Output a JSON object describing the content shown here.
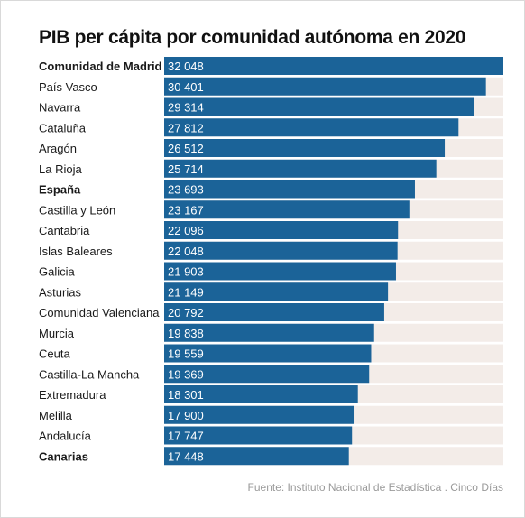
{
  "title": "PIB per cápita por comunidad autónoma en 2020",
  "source": "Fuente: Instituto Nacional de Estadística . Cinco Días",
  "colors": {
    "bar": "#1b6398",
    "track": "#f3ece8",
    "text": "#1a1a1a",
    "source": "#9a9a9a"
  },
  "chart_data": {
    "type": "bar",
    "orientation": "horizontal",
    "title": "PIB per cápita por comunidad autónoma en 2020",
    "xlim": [
      0,
      32048
    ],
    "grid": false,
    "categories": [
      "Comunidad de Madrid",
      "País Vasco",
      "Navarra",
      "Cataluña",
      "Aragón",
      "La Rioja",
      "España",
      "Castilla y León",
      "Cantabria",
      "Islas Baleares",
      "Galicia",
      "Asturias",
      "Comunidad Valenciana",
      "Murcia",
      "Ceuta",
      "Castilla-La Mancha",
      "Extremadura",
      "Melilla",
      "Andalucía",
      "Canarias"
    ],
    "values": [
      32048,
      30401,
      29314,
      27812,
      26512,
      25714,
      23693,
      23167,
      22096,
      22048,
      21903,
      21149,
      20792,
      19838,
      19559,
      19369,
      18301,
      17900,
      17747,
      17448
    ],
    "value_labels": [
      "32 048",
      "30 401",
      "29 314",
      "27 812",
      "26 512",
      "25 714",
      "23 693",
      "23 167",
      "22 096",
      "22 048",
      "21 903",
      "21 149",
      "20 792",
      "19 838",
      "19 559",
      "19 369",
      "18 301",
      "17 900",
      "17 747",
      "17 448"
    ],
    "bold_categories": [
      "Comunidad de Madrid",
      "España",
      "Canarias"
    ]
  }
}
